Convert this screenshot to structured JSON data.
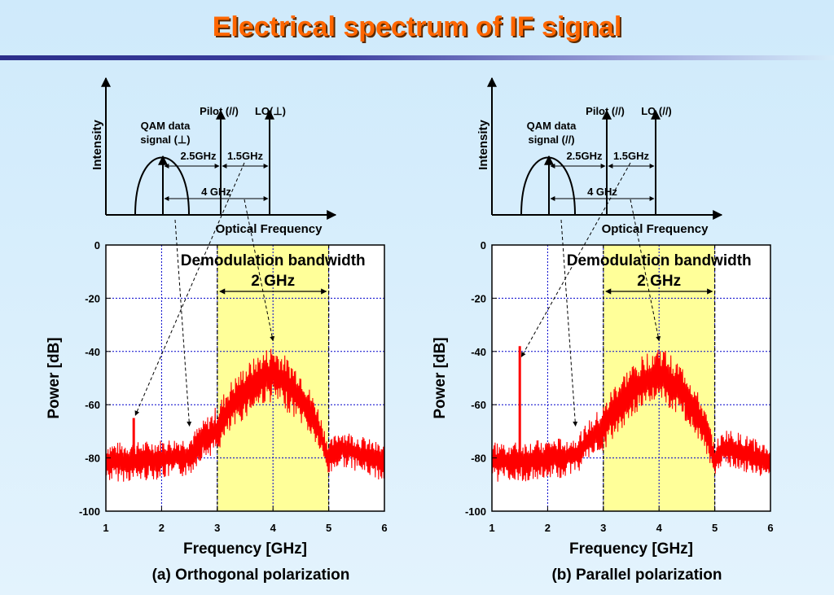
{
  "slide": {
    "title": "Electrical spectrum of IF signal"
  },
  "colors": {
    "title": "#ff6600",
    "trace": "#ff0000",
    "band": "#ffff99",
    "grid": "#0000cc"
  },
  "panels": [
    {
      "caption": "(a) Orthogonal polarization",
      "schematic": {
        "ylabel": "Intensity",
        "xlabel": "Optical Frequency",
        "qam_label_1": "QAM data",
        "qam_label_2": "signal (⊥)",
        "pilot_label": "Pilot (//)",
        "lo_label": "LO(⊥)",
        "span1": "2.5GHz",
        "span2": "1.5GHz",
        "span3": "4 GHz"
      },
      "annotation": {
        "line1": "Demodulation bandwidth",
        "line2": "2 GHz"
      }
    },
    {
      "caption": "(b) Parallel polarization",
      "schematic": {
        "ylabel": "Intensity",
        "xlabel": "Optical Frequency",
        "qam_label_1": "QAM data",
        "qam_label_2": "signal (//)",
        "pilot_label": "Pilot (//)",
        "lo_label": "LO (//)",
        "span1": "2.5GHz",
        "span2": "1.5GHz",
        "span3": "4 GHz"
      },
      "annotation": {
        "line1": "Demodulation bandwidth",
        "line2": "2 GHz"
      }
    }
  ],
  "chart_data": [
    {
      "type": "line",
      "xlabel": "Frequency [GHz]",
      "ylabel": "Power [dB]",
      "xlim": [
        1,
        6
      ],
      "ylim": [
        -100,
        0
      ],
      "xticks": [
        1,
        2,
        3,
        4,
        5,
        6
      ],
      "yticks": [
        0,
        -20,
        -40,
        -60,
        -80,
        -100
      ],
      "grid": true,
      "highlight_band": [
        3,
        5
      ],
      "series": [
        {
          "x": [
            1.0,
            1.5,
            2.0,
            2.5,
            2.7,
            3.0,
            3.2,
            3.5,
            3.8,
            4.0,
            4.2,
            4.5,
            4.8,
            5.0,
            5.2,
            5.5,
            6.0
          ],
          "y": [
            -81,
            -81,
            -80,
            -79,
            -74,
            -70,
            -62,
            -55,
            -50,
            -49,
            -51,
            -57,
            -68,
            -80,
            -76,
            -78,
            -82
          ],
          "peak_upper": [
            -74,
            -74,
            -73,
            -72,
            -67,
            -60,
            -52,
            -45,
            -40,
            -37,
            -41,
            -47,
            -60,
            -74,
            -69,
            -71,
            -75
          ],
          "peak_lower": [
            -89,
            -89,
            -88,
            -87,
            -81,
            -78,
            -72,
            -65,
            -60,
            -59,
            -62,
            -67,
            -76,
            -87,
            -83,
            -85,
            -89
          ]
        }
      ],
      "spikes": [
        {
          "x": 1.5,
          "y": -65
        }
      ]
    },
    {
      "type": "line",
      "xlabel": "Frequency [GHz]",
      "ylabel": "Power [dB]",
      "xlim": [
        1,
        6
      ],
      "ylim": [
        -100,
        0
      ],
      "xticks": [
        1,
        2,
        3,
        4,
        5,
        6
      ],
      "yticks": [
        0,
        -20,
        -40,
        -60,
        -80,
        -100
      ],
      "grid": true,
      "highlight_band": [
        3,
        5
      ],
      "series": [
        {
          "x": [
            1.0,
            1.5,
            2.0,
            2.5,
            2.7,
            3.0,
            3.2,
            3.5,
            3.8,
            4.0,
            4.2,
            4.5,
            4.8,
            5.0,
            5.2,
            5.5,
            6.0
          ],
          "y": [
            -81,
            -81,
            -80,
            -79,
            -74,
            -70,
            -62,
            -55,
            -50,
            -49,
            -51,
            -57,
            -68,
            -80,
            -76,
            -78,
            -82
          ],
          "peak_upper": [
            -74,
            -74,
            -73,
            -72,
            -67,
            -60,
            -52,
            -45,
            -40,
            -37,
            -41,
            -47,
            -60,
            -74,
            -69,
            -71,
            -75
          ],
          "peak_lower": [
            -89,
            -89,
            -88,
            -87,
            -81,
            -78,
            -72,
            -65,
            -60,
            -59,
            -62,
            -67,
            -76,
            -87,
            -83,
            -85,
            -89
          ]
        }
      ],
      "spikes": [
        {
          "x": 1.5,
          "y": -38
        }
      ]
    }
  ]
}
